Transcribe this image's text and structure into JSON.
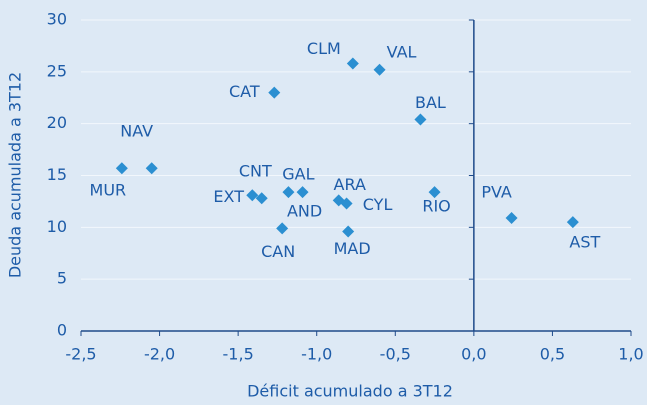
{
  "chart_data": {
    "type": "scatter",
    "x_label": "Déficit acumulado a 3T12",
    "y_label": "Deuda acumulada a 3T12",
    "labels": [
      "MUR",
      "NAV",
      "CAT",
      "CLM",
      "VAL",
      "BAL",
      "CNT",
      "EXT",
      "GAL",
      "AND",
      "CAN",
      "ARA",
      "CYL",
      "MAD",
      "RIO",
      "PVA",
      "AST"
    ],
    "x": [
      -2.24,
      -2.05,
      -1.27,
      -0.77,
      -0.6,
      -0.34,
      -1.41,
      -1.35,
      -1.18,
      -1.09,
      -1.22,
      -0.86,
      -0.81,
      -0.8,
      -0.25,
      0.24,
      0.63
    ],
    "y": [
      15.7,
      15.7,
      23.0,
      25.8,
      25.2,
      20.4,
      13.1,
      12.8,
      13.4,
      13.4,
      9.9,
      12.6,
      12.3,
      9.6,
      13.4,
      10.9,
      10.5
    ],
    "color": "#2b8fd1",
    "xlim": [
      -2.5,
      1.0
    ],
    "xticks": [
      {
        "value": -2.5,
        "label": "-2,5"
      },
      {
        "value": -2.0,
        "label": "-2,0"
      },
      {
        "value": -1.5,
        "label": "-1,5"
      },
      {
        "value": -1.0,
        "label": "-1,0"
      },
      {
        "value": -0.5,
        "label": "-0,5"
      },
      {
        "value": 0,
        "label": "0,0"
      },
      {
        "value": 0.5,
        "label": "0,5"
      },
      {
        "value": 1.0,
        "label": "1,0"
      }
    ],
    "ylim": [
      0,
      30
    ],
    "yticks": [
      0,
      5,
      10,
      15,
      20,
      25,
      30
    ],
    "grid": true
  }
}
